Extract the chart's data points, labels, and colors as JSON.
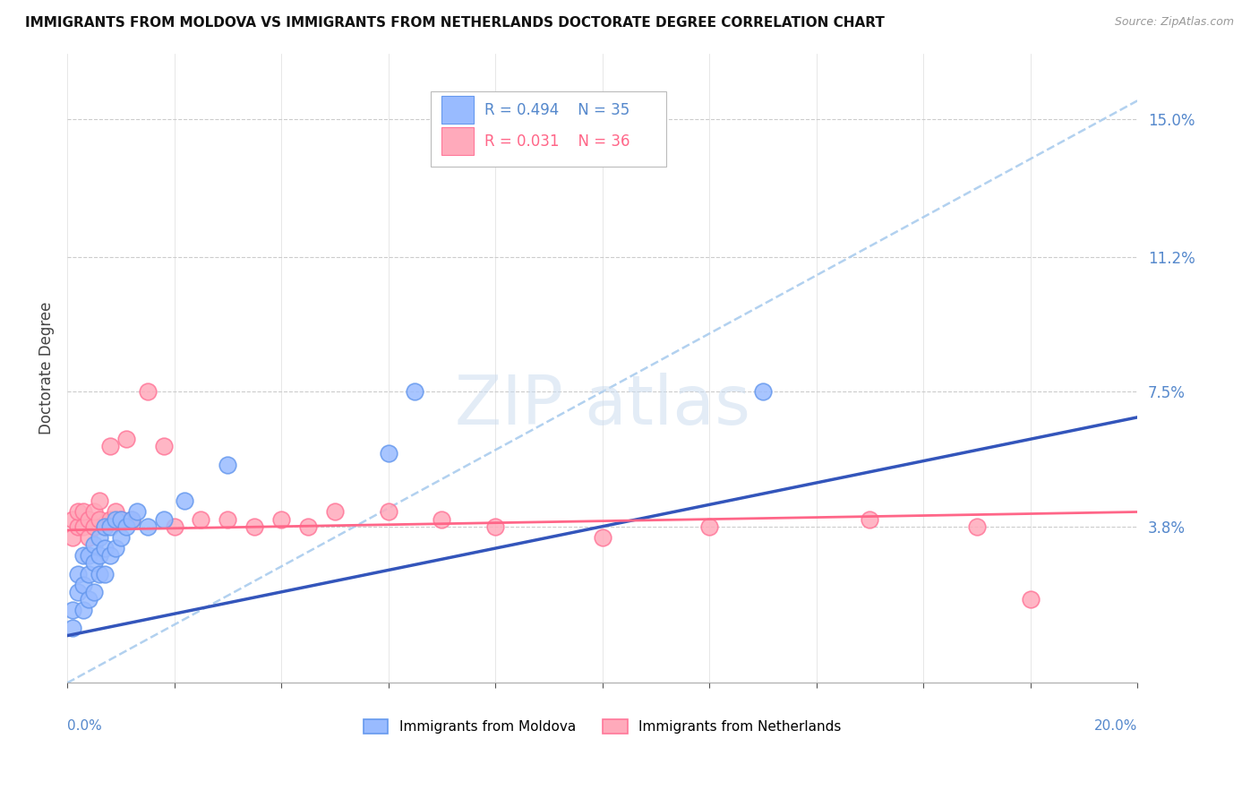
{
  "title": "IMMIGRANTS FROM MOLDOVA VS IMMIGRANTS FROM NETHERLANDS DOCTORATE DEGREE CORRELATION CHART",
  "source": "Source: ZipAtlas.com",
  "ylabel": "Doctorate Degree",
  "ytick_labels": [
    "15.0%",
    "11.2%",
    "7.5%",
    "3.8%"
  ],
  "ytick_values": [
    0.15,
    0.112,
    0.075,
    0.038
  ],
  "xlim": [
    0.0,
    0.2
  ],
  "ylim": [
    -0.005,
    0.168
  ],
  "legend_r1": "R = 0.494",
  "legend_n1": "N = 35",
  "legend_r2": "R = 0.031",
  "legend_n2": "N = 36",
  "color_moldova_fill": "#99BBFF",
  "color_moldova_edge": "#6699EE",
  "color_netherlands_fill": "#FFAABB",
  "color_netherlands_edge": "#FF7799",
  "color_moldova_line": "#3355BB",
  "color_netherlands_line": "#FF6688",
  "color_dashed": "#AACCEE",
  "background": "#FFFFFF",
  "moldova_x": [
    0.001,
    0.001,
    0.002,
    0.002,
    0.003,
    0.003,
    0.003,
    0.004,
    0.004,
    0.004,
    0.005,
    0.005,
    0.005,
    0.006,
    0.006,
    0.006,
    0.007,
    0.007,
    0.007,
    0.008,
    0.008,
    0.009,
    0.009,
    0.01,
    0.01,
    0.011,
    0.012,
    0.013,
    0.015,
    0.018,
    0.022,
    0.03,
    0.06,
    0.065,
    0.13
  ],
  "moldova_y": [
    0.01,
    0.015,
    0.02,
    0.025,
    0.015,
    0.022,
    0.03,
    0.018,
    0.025,
    0.03,
    0.02,
    0.028,
    0.033,
    0.025,
    0.03,
    0.035,
    0.025,
    0.032,
    0.038,
    0.03,
    0.038,
    0.032,
    0.04,
    0.035,
    0.04,
    0.038,
    0.04,
    0.042,
    0.038,
    0.04,
    0.045,
    0.055,
    0.058,
    0.075,
    0.075
  ],
  "netherlands_x": [
    0.001,
    0.001,
    0.002,
    0.002,
    0.003,
    0.003,
    0.004,
    0.004,
    0.005,
    0.005,
    0.006,
    0.006,
    0.007,
    0.008,
    0.008,
    0.009,
    0.01,
    0.011,
    0.012,
    0.015,
    0.018,
    0.02,
    0.025,
    0.03,
    0.035,
    0.04,
    0.045,
    0.05,
    0.06,
    0.07,
    0.08,
    0.1,
    0.12,
    0.15,
    0.17,
    0.18
  ],
  "netherlands_y": [
    0.035,
    0.04,
    0.038,
    0.042,
    0.038,
    0.042,
    0.035,
    0.04,
    0.038,
    0.042,
    0.04,
    0.045,
    0.038,
    0.04,
    0.06,
    0.042,
    0.04,
    0.062,
    0.04,
    0.075,
    0.06,
    0.038,
    0.04,
    0.04,
    0.038,
    0.04,
    0.038,
    0.042,
    0.042,
    0.04,
    0.038,
    0.035,
    0.038,
    0.04,
    0.038,
    0.018
  ],
  "moldova_line_x": [
    0.0,
    0.2
  ],
  "moldova_line_y": [
    0.008,
    0.068
  ],
  "netherlands_line_x": [
    0.0,
    0.2
  ],
  "netherlands_line_y": [
    0.037,
    0.042
  ],
  "dashed_line_x": [
    0.0,
    0.2
  ],
  "dashed_line_y": [
    -0.005,
    0.155
  ]
}
